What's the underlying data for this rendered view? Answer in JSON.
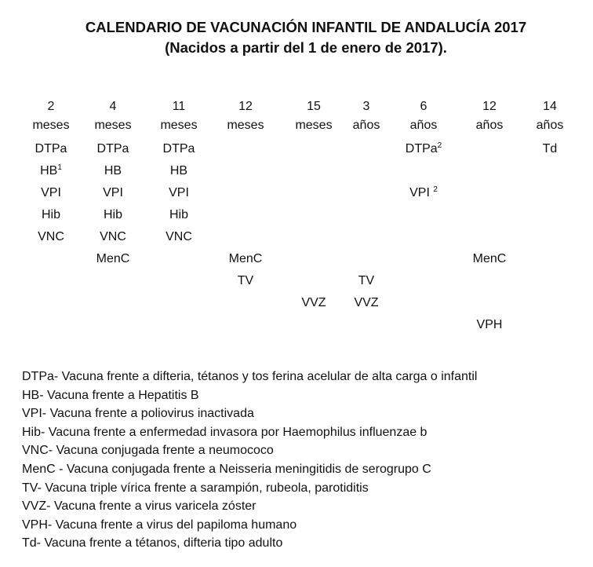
{
  "title": "CALENDARIO DE VACUNACIÓN INFANTIL DE ANDALUCÍA 2017",
  "subtitle": "(Nacidos a partir del 1 de enero de 2017).",
  "columns": [
    {
      "age": "2",
      "unit": "meses",
      "cells": [
        {
          "t": "DTPa"
        },
        {
          "t": "HB",
          "sup": "1"
        },
        {
          "t": "VPI"
        },
        {
          "t": "Hib"
        },
        {
          "t": "VNC"
        },
        {
          "t": ""
        },
        {
          "t": ""
        },
        {
          "t": ""
        },
        {
          "t": ""
        }
      ]
    },
    {
      "age": "4",
      "unit": "meses",
      "cells": [
        {
          "t": "DTPa"
        },
        {
          "t": "HB"
        },
        {
          "t": "VPI"
        },
        {
          "t": "Hib"
        },
        {
          "t": "VNC"
        },
        {
          "t": "MenC"
        },
        {
          "t": ""
        },
        {
          "t": ""
        },
        {
          "t": ""
        }
      ]
    },
    {
      "age": "11",
      "unit": "meses",
      "cells": [
        {
          "t": "DTPa"
        },
        {
          "t": "HB"
        },
        {
          "t": "VPI"
        },
        {
          "t": "Hib"
        },
        {
          "t": "VNC"
        },
        {
          "t": ""
        },
        {
          "t": ""
        },
        {
          "t": ""
        },
        {
          "t": ""
        }
      ]
    },
    {
      "age": "12",
      "unit": "meses",
      "cells": [
        {
          "t": ""
        },
        {
          "t": ""
        },
        {
          "t": ""
        },
        {
          "t": ""
        },
        {
          "t": ""
        },
        {
          "t": "MenC"
        },
        {
          "t": "TV"
        },
        {
          "t": ""
        },
        {
          "t": ""
        }
      ]
    },
    {
      "age": "15",
      "unit": "meses",
      "cells": [
        {
          "t": ""
        },
        {
          "t": ""
        },
        {
          "t": ""
        },
        {
          "t": ""
        },
        {
          "t": ""
        },
        {
          "t": ""
        },
        {
          "t": ""
        },
        {
          "t": "VVZ"
        },
        {
          "t": ""
        }
      ]
    },
    {
      "age": "3",
      "unit": "años",
      "cells": [
        {
          "t": ""
        },
        {
          "t": ""
        },
        {
          "t": ""
        },
        {
          "t": ""
        },
        {
          "t": ""
        },
        {
          "t": ""
        },
        {
          "t": "TV"
        },
        {
          "t": "VVZ"
        },
        {
          "t": ""
        }
      ]
    },
    {
      "age": "6",
      "unit": "años",
      "cells": [
        {
          "t": "DTPa",
          "sup": "2"
        },
        {
          "t": ""
        },
        {
          "t": "VPI ",
          "sup": "2"
        },
        {
          "t": ""
        },
        {
          "t": ""
        },
        {
          "t": ""
        },
        {
          "t": ""
        },
        {
          "t": ""
        },
        {
          "t": ""
        }
      ]
    },
    {
      "age": "12",
      "unit": "años",
      "cells": [
        {
          "t": ""
        },
        {
          "t": ""
        },
        {
          "t": ""
        },
        {
          "t": ""
        },
        {
          "t": ""
        },
        {
          "t": "MenC"
        },
        {
          "t": ""
        },
        {
          "t": ""
        },
        {
          "t": "VPH"
        }
      ]
    },
    {
      "age": "14",
      "unit": "años",
      "cells": [
        {
          "t": "Td"
        },
        {
          "t": ""
        },
        {
          "t": ""
        },
        {
          "t": ""
        },
        {
          "t": ""
        },
        {
          "t": ""
        },
        {
          "t": ""
        },
        {
          "t": ""
        },
        {
          "t": ""
        }
      ]
    }
  ],
  "legend": [
    "DTPa- Vacuna frente a difteria, tétanos y tos ferina acelular de alta carga o infantil",
    "HB- Vacuna frente a Hepatitis B",
    "VPI- Vacuna frente a poliovirus inactivada",
    "Hib- Vacuna frente a enfermedad invasora por Haemophilus influenzae b",
    "VNC- Vacuna conjugada frente a neumococo",
    "MenC - Vacuna conjugada frente a Neisseria meningitidis de serogrupo C",
    "TV- Vacuna triple vírica frente a sarampión, rubeola, parotiditis",
    "VVZ- Vacuna frente a virus varicela zóster",
    "VPH- Vacuna frente a virus del papiloma humano",
    "Td- Vacuna frente a tétanos, difteria tipo adulto"
  ]
}
